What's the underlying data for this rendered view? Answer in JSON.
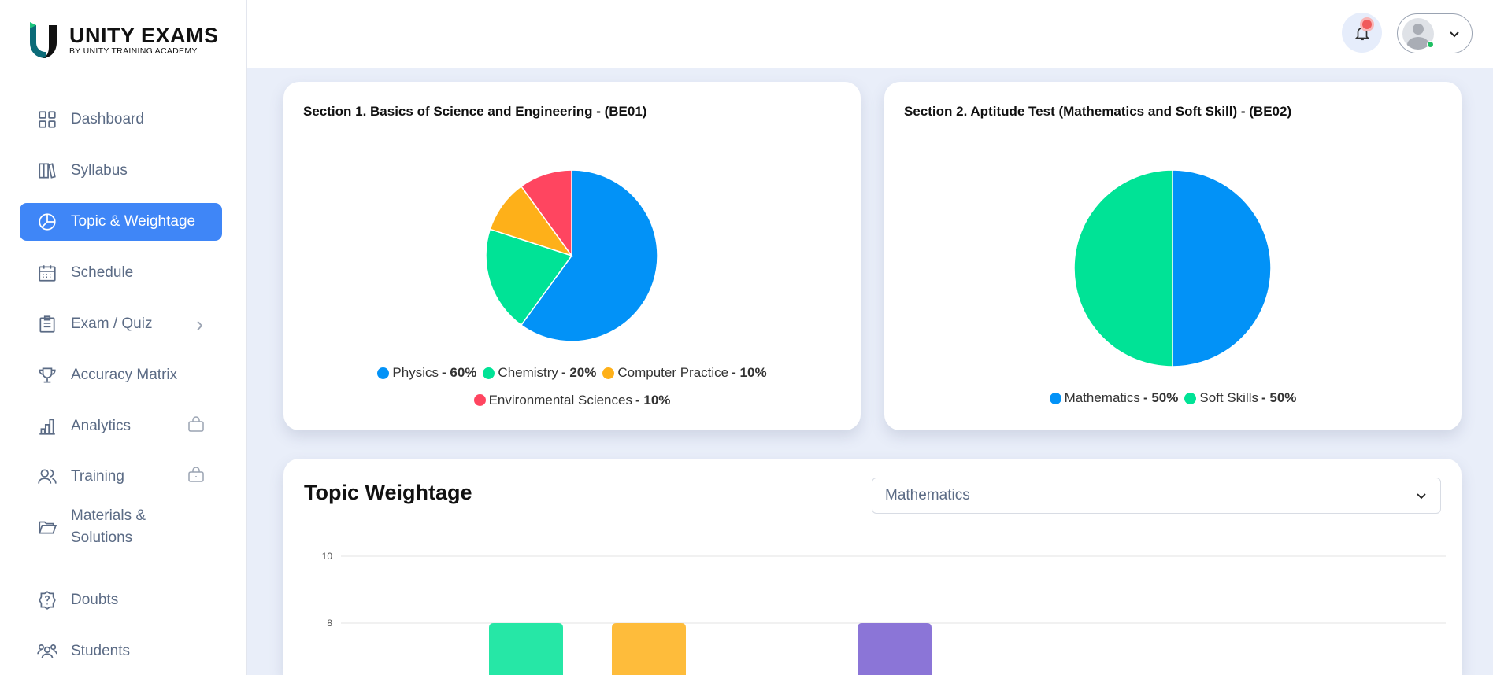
{
  "brand": {
    "name": "UNITY EXAMS",
    "tagline": "BY UNITY TRAINING ACADEMY"
  },
  "sidebar": {
    "items": [
      {
        "label": "Dashboard",
        "icon": "grid-icon"
      },
      {
        "label": "Syllabus",
        "icon": "books-icon"
      },
      {
        "label": "Topic & Weightage",
        "icon": "pie-chart-icon",
        "active": true
      },
      {
        "label": "Schedule",
        "icon": "calendar-icon"
      },
      {
        "label": "Exam / Quiz",
        "icon": "clipboard-icon",
        "chevron": "›"
      },
      {
        "label": "Accuracy Matrix",
        "icon": "trophy-icon"
      },
      {
        "label": "Analytics",
        "icon": "bar-chart-icon",
        "locked": true
      },
      {
        "label": "Training",
        "icon": "users-icon",
        "locked": true
      },
      {
        "label": "Materials & Solutions",
        "icon": "folder-icon"
      },
      {
        "label": "Doubts",
        "icon": "question-badge-icon"
      },
      {
        "label": "Students",
        "icon": "students-icon"
      }
    ]
  },
  "section1": {
    "title": "Section 1. Basics of Science and Engineering - (BE01)"
  },
  "section2": {
    "title": "Section 2. Aptitude Test (Mathematics and Soft Skill) - (BE02)"
  },
  "topic_weightage": {
    "title": "Topic Weightage",
    "selected": "Mathematics"
  },
  "chart_data": [
    {
      "type": "pie",
      "title": "Section 1. Basics of Science and Engineering - (BE01)",
      "slices": [
        {
          "label": "Physics",
          "value": 60,
          "pct": "60%",
          "color": "#0292f7"
        },
        {
          "label": "Chemistry",
          "value": 20,
          "pct": "20%",
          "color": "#00e396"
        },
        {
          "label": "Computer Practice",
          "value": 10,
          "pct": "10%",
          "color": "#feb019"
        },
        {
          "label": "Environmental Sciences",
          "value": 10,
          "pct": "10%",
          "color": "#ff4560"
        }
      ]
    },
    {
      "type": "pie",
      "title": "Section 2. Aptitude Test (Mathematics and Soft Skill) - (BE02)",
      "slices": [
        {
          "label": "Mathematics",
          "value": 50,
          "pct": "50%",
          "color": "#0292f7"
        },
        {
          "label": "Soft Skills",
          "value": 50,
          "pct": "50%",
          "color": "#00e396"
        }
      ]
    },
    {
      "type": "bar",
      "title": "Topic Weightage",
      "yticks": [
        "10",
        "8"
      ],
      "ylim": [
        0,
        10
      ],
      "values": [
        8,
        8,
        null,
        8
      ],
      "colors": [
        "#26e7a6",
        "#febc3b",
        "#ffffff",
        "#8b75d7"
      ]
    }
  ]
}
